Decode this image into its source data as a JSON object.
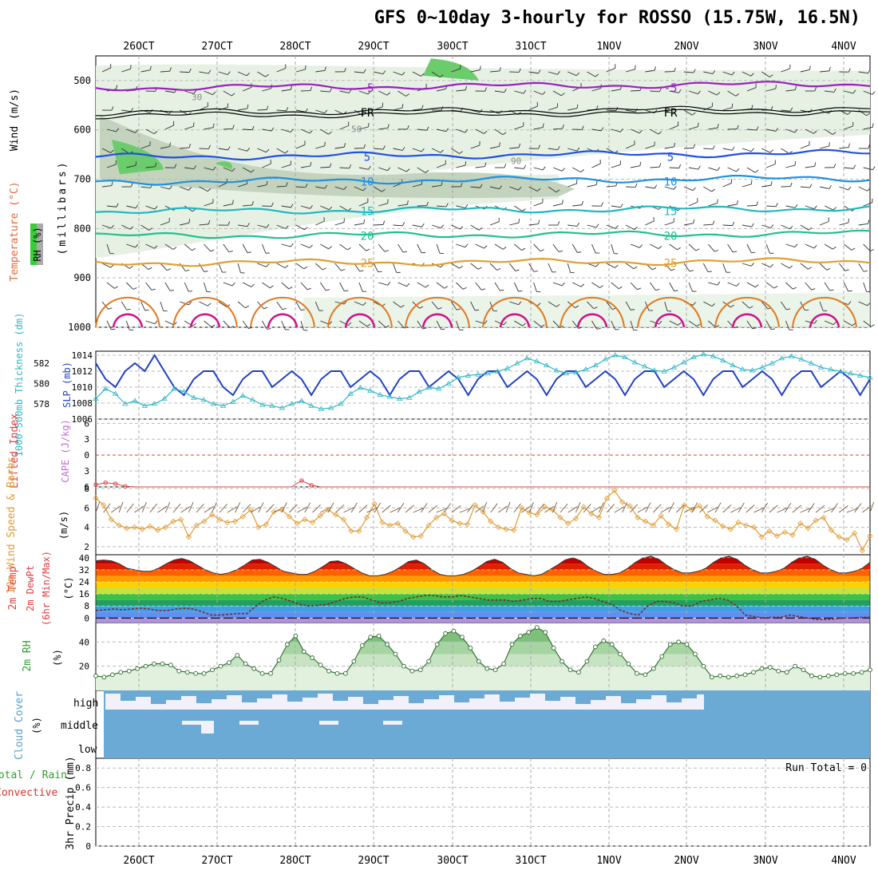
{
  "title": "GFS 0~10day 3-hourly for ROSSO (15.75W, 16.5N)",
  "dates": [
    "26OCT",
    "27OCT",
    "28OCT",
    "29OCT",
    "30OCT",
    "31OCT",
    "1NOV",
    "2NOV",
    "3NOV",
    "4NOV"
  ],
  "colors": {
    "rh": "#3aaa3a",
    "temp": "#e06a3a",
    "wind": "#4a4a9a",
    "thickness": "#30b8c8",
    "slp": "#2040c0",
    "li": "#e04040",
    "cape": "#c070d0",
    "speed": "#e09a30",
    "rh2m": "#30a030",
    "cloud": "#5aa0cc",
    "precip_total": "#30a030",
    "precip_conv": "#e03030"
  },
  "chart_data": [
    {
      "panel": "upper_air",
      "type": "line",
      "labels": {
        "wind": "Wind (m/s)",
        "temp": "Temperature (°C)",
        "pressure": "(millibars)",
        "rh": "RH (%)"
      },
      "y_ticks": [
        500,
        600,
        700,
        800,
        900,
        1000
      ],
      "ylim": [
        450,
        1000
      ],
      "temperature_isotherms": [
        {
          "name": "-5",
          "level_mb": 515,
          "color": "#9a20c0",
          "label_text": "-5"
        },
        {
          "name": "FR",
          "level_mb": 565,
          "color": "#000000",
          "label_text": "FR"
        },
        {
          "name": "5",
          "level_mb": 655,
          "color": "#2050e0",
          "label_text": "5"
        },
        {
          "name": "10",
          "level_mb": 705,
          "color": "#2090e0",
          "label_text": "10"
        },
        {
          "name": "15",
          "level_mb": 765,
          "color": "#20b8c0",
          "label_text": "15"
        },
        {
          "name": "20",
          "level_mb": 815,
          "color": "#20c090",
          "label_text": "20"
        },
        {
          "name": "25",
          "level_mb": 870,
          "color": "#e0a030",
          "label_text": "25"
        }
      ],
      "rh_contour_labels": [
        "30",
        "50",
        "90"
      ]
    },
    {
      "panel": "thickness_slp",
      "type": "line",
      "labels": {
        "thickness": "1000-500mb Thickness (dm)",
        "slp": "SLP (mb)"
      },
      "thickness_ticks": [
        578,
        580,
        582
      ],
      "slp_ticks": [
        1006,
        1008,
        1010,
        1012,
        1014
      ],
      "slp": [
        1013,
        1011,
        1010,
        1012,
        1013,
        1012,
        1014,
        1012,
        1010,
        1009,
        1011,
        1012,
        1012,
        1010,
        1009,
        1011,
        1012,
        1012,
        1010,
        1011,
        1012,
        1011,
        1009,
        1011,
        1012,
        1012,
        1010,
        1011,
        1012,
        1011,
        1009,
        1011,
        1012,
        1012,
        1010,
        1011,
        1012,
        1011,
        1009,
        1011,
        1012,
        1012,
        1010,
        1011,
        1012,
        1011,
        1009,
        1011,
        1012,
        1012,
        1010,
        1011,
        1012,
        1011,
        1009,
        1011,
        1012,
        1012,
        1010,
        1011,
        1012,
        1011,
        1009,
        1011,
        1012,
        1012,
        1010,
        1011,
        1012,
        1011,
        1009,
        1011,
        1012,
        1012,
        1010,
        1011,
        1012,
        1011,
        1009,
        1011
      ],
      "thickness": [
        578.5,
        579.5,
        579,
        578,
        578.3,
        577.8,
        578,
        578.5,
        579.5,
        579.2,
        578.6,
        578.4,
        578,
        577.8,
        578.2,
        578.8,
        578.4,
        577.9,
        577.8,
        577.6,
        578,
        578.3,
        577.8,
        577.5,
        577.6,
        578,
        579.0,
        579.6,
        579.3,
        578.9,
        578.7,
        578.5,
        578.6,
        579.2,
        579.6,
        579.5,
        580.0,
        580.6,
        580.8,
        580.9,
        581.0,
        581.2,
        581.5,
        582.0,
        582.5,
        582.2,
        581.8,
        581.3,
        581.0,
        581.1,
        581.4,
        581.8,
        582.4,
        582.8,
        582.6,
        582.1,
        581.7,
        581.3,
        581.2,
        581.6,
        582.1,
        582.6,
        582.9,
        582.7,
        582.3,
        581.8,
        581.4,
        581.3,
        581.6,
        582.0,
        582.5,
        582.7,
        582.4,
        582.0,
        581.6,
        581.4,
        581.2,
        581.0,
        580.8,
        580.6
      ]
    },
    {
      "panel": "lifted_index_cape",
      "type": "line",
      "labels": {
        "li": "Lifted Index",
        "cape": "CAPE (J/kg)"
      },
      "y_ticks": [
        -6,
        -3,
        0,
        3,
        6
      ],
      "lifted_index": [
        5.6,
        5.2,
        5.4,
        5.9,
        6,
        6,
        6,
        6,
        6,
        6,
        6,
        6,
        6,
        6,
        6,
        6,
        6,
        6,
        6,
        6,
        6,
        4.8,
        5.7,
        6,
        6,
        6,
        6,
        6,
        6,
        6,
        6,
        6,
        6,
        6,
        6,
        6,
        6,
        6,
        6,
        6,
        6,
        6,
        6,
        6,
        6,
        6,
        6,
        6,
        6,
        6,
        6,
        6,
        6,
        6,
        6,
        6,
        6,
        6,
        6,
        6,
        6,
        6,
        6,
        6,
        6,
        6,
        6,
        6,
        6,
        6,
        6,
        6,
        6,
        6,
        6,
        6,
        6,
        6,
        6,
        6
      ]
    },
    {
      "panel": "wind10m",
      "type": "line",
      "labels": {
        "title": "10m Wind Speed & Barbs",
        "units": "(m/s)"
      },
      "y_ticks": [
        2,
        4,
        6,
        8
      ],
      "speed": [
        7,
        6.3,
        4.8,
        4.2,
        3.9,
        4.0,
        3.8,
        4.1,
        3.7,
        4.0,
        4.6,
        4.8,
        3.0,
        4.2,
        4.6,
        5.3,
        4.8,
        4.5,
        4.6,
        5.1,
        5.8,
        4.0,
        4.3,
        5.6,
        5.8,
        5.1,
        4.4,
        4.8,
        4.5,
        5.2,
        5.8,
        5.3,
        4.8,
        3.6,
        3.6,
        5.0,
        6.4,
        4.5,
        4.2,
        4.4,
        3.6,
        3.0,
        3.1,
        4.2,
        5.0,
        5.4,
        4.7,
        4.4,
        4.3,
        6.3,
        5.6,
        4.6,
        4.0,
        3.8,
        3.7,
        6.0,
        5.5,
        5.3,
        6.1,
        5.8,
        5.0,
        4.4,
        4.9,
        6.1,
        5.4,
        5.0,
        7.0,
        7.8,
        6.6,
        6.2,
        5.0,
        4.6,
        4.2,
        5.2,
        4.3,
        3.8,
        6.3,
        5.8,
        6.2,
        5.1,
        4.7,
        4.1,
        3.8,
        4.5,
        4.2,
        4.0,
        3.0,
        3.6,
        3.1,
        3.5,
        3.2,
        4.4,
        3.9,
        4.7,
        5.0,
        3.7,
        3.0,
        2.7,
        3.4,
        1.6,
        3.1
      ]
    },
    {
      "panel": "temperature2m",
      "type": "area",
      "labels": {
        "title": "2m Temp",
        "dewpt": "2m DewPt",
        "minmax": "(6hr Min/Max)",
        "units": "(°C)"
      },
      "y_ticks": [
        0,
        8,
        16,
        24,
        32,
        40
      ],
      "temp": [
        38,
        38.5,
        38,
        36,
        33,
        32,
        31,
        31,
        33,
        36,
        38.5,
        39.5,
        38,
        35,
        32,
        30,
        29,
        30,
        32,
        35,
        38.5,
        39,
        37,
        34,
        31,
        30,
        29,
        29,
        31,
        34,
        37.5,
        38,
        36,
        33,
        30,
        28,
        28,
        29,
        31,
        34,
        37.5,
        38.5,
        36,
        32,
        29,
        28,
        28,
        29,
        31,
        34,
        37.5,
        39,
        37,
        33,
        30,
        29,
        28,
        29,
        32,
        35,
        38.5,
        40,
        38,
        34,
        31,
        29,
        29,
        30,
        33,
        37,
        40,
        41,
        39,
        35,
        32,
        30,
        30,
        31,
        33,
        37,
        40,
        41,
        39,
        35,
        32,
        30,
        30,
        31,
        33,
        37,
        40,
        41,
        39,
        35,
        32,
        30,
        30,
        31,
        33,
        37
      ],
      "dewpoint": [
        5,
        5.5,
        6,
        5.5,
        6,
        6.5,
        6,
        5,
        5,
        6,
        6.5,
        6,
        4,
        2,
        2,
        2.5,
        3,
        3,
        8,
        12,
        14,
        13,
        11,
        9,
        8,
        8.5,
        9,
        11,
        13,
        14,
        14,
        12,
        10,
        10,
        11,
        13,
        14,
        15,
        15,
        14,
        14,
        15,
        14,
        13,
        12,
        12,
        12,
        11,
        12,
        13,
        13,
        11,
        11,
        12,
        13,
        14,
        13,
        11,
        9,
        5,
        3,
        2,
        8,
        11,
        11,
        10,
        8,
        8,
        11,
        12,
        13,
        12,
        8,
        2,
        1,
        0,
        0.5,
        0.5,
        2,
        1,
        0,
        -1,
        -1,
        -0.5,
        0,
        0,
        0.5,
        0.5
      ]
    },
    {
      "panel": "rh2m",
      "type": "area",
      "labels": {
        "title": "2m RH",
        "units": "(%)"
      },
      "y_ticks": [
        20,
        40
      ],
      "rh": [
        12,
        11,
        13,
        15,
        16,
        18,
        20,
        22,
        22,
        21,
        16,
        15,
        14,
        14,
        17,
        20,
        23,
        29,
        22,
        18,
        14,
        14,
        25,
        38,
        45,
        32,
        27,
        21,
        16,
        14,
        14,
        24,
        37,
        44,
        45,
        38,
        30,
        20,
        16,
        17,
        24,
        38,
        47,
        49,
        44,
        35,
        24,
        18,
        17,
        22,
        38,
        45,
        48,
        52,
        48,
        35,
        24,
        17,
        15,
        24,
        36,
        41,
        38,
        30,
        22,
        14,
        13,
        18,
        28,
        38,
        40,
        38,
        30,
        20,
        11,
        12,
        11,
        12,
        13,
        15,
        18,
        19,
        16,
        15,
        20,
        17,
        12,
        11,
        12,
        13,
        14,
        14,
        15,
        17
      ]
    },
    {
      "panel": "cloud_cover",
      "type": "bar",
      "labels": {
        "title": "Cloud Cover",
        "units": "(%)",
        "high": "high",
        "middle": "middle",
        "low": "low"
      }
    },
    {
      "panel": "precip3hr",
      "type": "bar",
      "labels": {
        "title": "3hr Precip (mm)",
        "total": "Total / Rain",
        "conv": "Convective",
        "run_total": "Run Total = 0"
      },
      "y_ticks": [
        0,
        0.2,
        0.4,
        0.6,
        0.8
      ],
      "ylim": [
        0,
        0.9
      ]
    }
  ]
}
